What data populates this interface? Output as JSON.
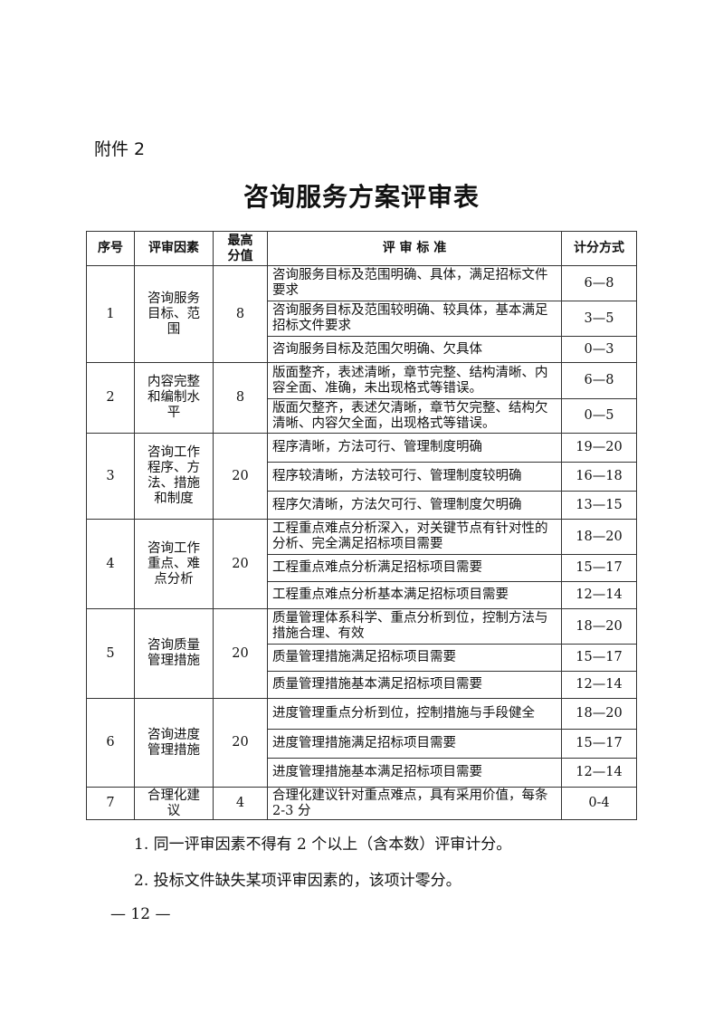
{
  "attachment_label": "附件 2",
  "title": "咨询服务方案评审表",
  "table": {
    "headers": [
      "序号",
      "评审因素",
      "最高分值",
      "评 审 标 准",
      "计分方式"
    ],
    "rows": [
      {
        "no": "1",
        "factor": "咨询服务目标、范围",
        "max": "8",
        "criteria": [
          {
            "text": "咨询服务目标及范围明确、具体，满足招标文件要求",
            "score": "6—8"
          },
          {
            "text": "咨询服务目标及范围较明确、较具体，基本满足招标文件要求",
            "score": "3—5"
          },
          {
            "text": "咨询服务目标及范围欠明确、欠具体",
            "score": "0—3"
          }
        ]
      },
      {
        "no": "2",
        "factor": "内容完整和编制水平",
        "max": "8",
        "criteria": [
          {
            "text": "版面整齐，表述清晰，章节完整、结构清晰、内容全面、准确，未出现格式等错误。",
            "score": "6—8"
          },
          {
            "text": "版面欠整齐，表述欠清晰，章节欠完整、结构欠清晰、内容欠全面，出现格式等错误。",
            "score": "0—5"
          }
        ]
      },
      {
        "no": "3",
        "factor": "咨询工作程序、方法、措施和制度",
        "max": "20",
        "criteria": [
          {
            "text": "程序清晰，方法可行、管理制度明确",
            "score": "19—20"
          },
          {
            "text": "程序较清晰，方法较可行、管理制度较明确",
            "score": "16—18"
          },
          {
            "text": "程序欠清晰，方法欠可行、管理制度欠明确",
            "score": "13—15"
          }
        ]
      },
      {
        "no": "4",
        "factor": "咨询工作重点、难点分析",
        "max": "20",
        "criteria": [
          {
            "text": "工程重点难点分析深入，对关键节点有针对性的分析、完全满足招标项目需要",
            "score": "18—20"
          },
          {
            "text": "工程重点难点分析满足招标项目需要",
            "score": "15—17"
          },
          {
            "text": "工程重点难点分析基本满足招标项目需要",
            "score": "12—14"
          }
        ]
      },
      {
        "no": "5",
        "factor": "咨询质量管理措施",
        "max": "20",
        "criteria": [
          {
            "text": "质量管理体系科学、重点分析到位，控制方法与措施合理、有效",
            "score": "18—20"
          },
          {
            "text": "质量管理措施满足招标项目需要",
            "score": "15—17"
          },
          {
            "text": "质量管理措施基本满足招标项目需要",
            "score": "12—14"
          }
        ]
      },
      {
        "no": "6",
        "factor": "咨询进度管理措施",
        "max": "20",
        "criteria": [
          {
            "text": "进度管理重点分析到位，控制措施与手段健全",
            "score": "18—20"
          },
          {
            "text": "进度管理措施满足招标项目需要",
            "score": "15—17"
          },
          {
            "text": "进度管理措施基本满足招标项目需要",
            "score": "12—14"
          }
        ]
      },
      {
        "no": "7",
        "factor": "合理化建议",
        "max": "4",
        "criteria": [
          {
            "text": "合理化建议针对重点难点，具有采用价值，每条 2-3 分",
            "score": "0-4"
          }
        ]
      }
    ]
  },
  "notes": [
    "1. 同一评审因素不得有 2 个以上（含本数）评审计分。",
    "2. 投标文件缺失某项评审因素的，该项计零分。"
  ],
  "page_number": "— 12 —"
}
